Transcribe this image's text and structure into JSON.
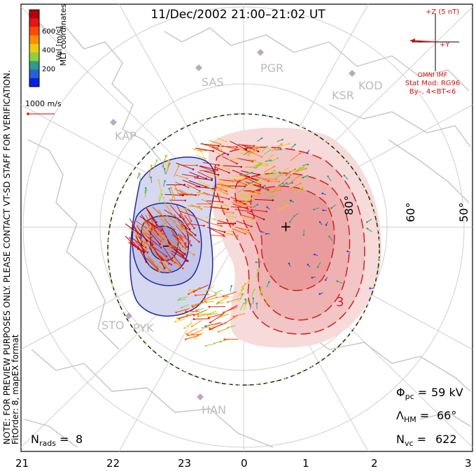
{
  "title": "11/Dec/2002 21:00–21:02 UT",
  "coordinates_label": "MLT coordinates",
  "side_note_line1": "NOTE: FOR PREVIEW PURPOSES ONLY. PLEASE CONTACT VT-SD STAFF FOR VERIFICATION.",
  "side_note_line2": "FitOrder: 8, mapEX format",
  "colorbar": {
    "label": "Vel [m/s]",
    "ticks": [
      "600",
      "400",
      "200"
    ],
    "colors": [
      "#0a1ee6",
      "#2d5fd6",
      "#2e9c8c",
      "#8cd23c",
      "#f0c814",
      "#ff8c00",
      "#ff4b00",
      "#e61414",
      "#b4000a"
    ]
  },
  "velocity_scale": {
    "label": "1000 m/s",
    "color": "#e03020"
  },
  "imf": {
    "z_label": "+Z (5 nT)",
    "y_label": "+Y",
    "source": "OMNI IMF",
    "model": "Stat Mod: RG96",
    "condition": "By–, 4<BT<6",
    "color": "#d01010"
  },
  "stations": [
    "SAS",
    "PGR",
    "KSR",
    "KOD",
    "KAP",
    "STO",
    "PYK",
    "HAN"
  ],
  "lat_labels": [
    "80°",
    "60°",
    "50°"
  ],
  "contour_label": "3",
  "mlt_ticks": [
    "21",
    "22",
    "23",
    "0",
    "1",
    "2",
    "3"
  ],
  "stats": {
    "phi_pc": "59 kV",
    "lambda_hm": "66°",
    "n_vc": "622",
    "n_rads": "8"
  },
  "colors": {
    "negative_cell": "#1e2a9e",
    "positive_cell": "#d21e1e",
    "coastline": "#c8c8c8",
    "grid": "#c8c8c8"
  }
}
